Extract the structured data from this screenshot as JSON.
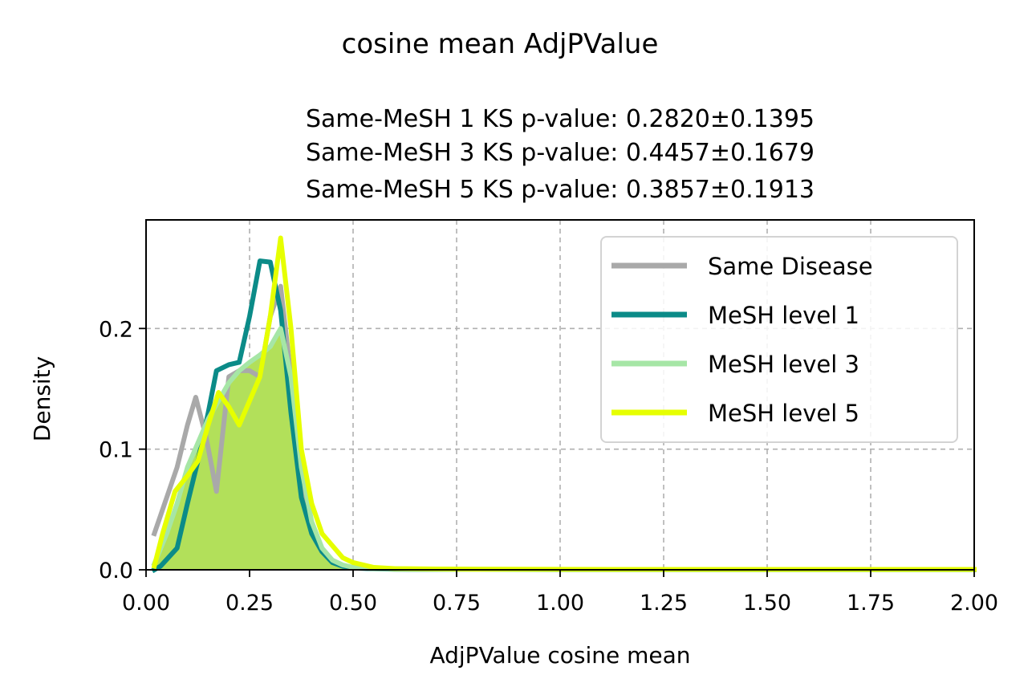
{
  "chart_data": {
    "type": "line",
    "suptitle": "cosine mean AdjPValue",
    "title_lines": [
      "Same-MeSH 1 KS p-value: 0.2820±0.1395",
      "Same-MeSH 3 KS p-value: 0.4457±0.1679",
      "Same-MeSH 5 KS p-value: 0.3857±0.1913"
    ],
    "xlabel": "AdjPValue cosine mean",
    "ylabel": "Density",
    "xlim": [
      0,
      2
    ],
    "ylim": [
      0,
      0.29
    ],
    "x_ticks": [
      "0.00",
      "0.25",
      "0.50",
      "0.75",
      "1.00",
      "1.25",
      "1.50",
      "1.75",
      "2.00"
    ],
    "y_ticks": [
      "0.0",
      "0.1",
      "0.2"
    ],
    "grid": true,
    "legend_position": "top-right",
    "filled_area_color": "#b2e05a",
    "series": [
      {
        "name": "Same Disease",
        "color": "#a9a9a9",
        "x": [
          0.02,
          0.045,
          0.075,
          0.1,
          0.12,
          0.145,
          0.17,
          0.2,
          0.225,
          0.25,
          0.275,
          0.3,
          0.325,
          0.35,
          0.375,
          0.4,
          0.425,
          0.45,
          0.475,
          0.5,
          0.55,
          0.6,
          0.7,
          0.8,
          1.0,
          1.2,
          1.5,
          1.75,
          2.0
        ],
        "y": [
          0.03,
          0.055,
          0.085,
          0.12,
          0.143,
          0.11,
          0.065,
          0.16,
          0.165,
          0.165,
          0.16,
          0.21,
          0.235,
          0.16,
          0.07,
          0.03,
          0.015,
          0.006,
          0.003,
          0.002,
          0.001,
          0.0008,
          0.0005,
          0.0004,
          0.0003,
          0.0003,
          0.0002,
          0.0002,
          0.0002
        ]
      },
      {
        "name": "MeSH level 1",
        "color": "#0b8b88",
        "x": [
          0.02,
          0.035,
          0.075,
          0.1,
          0.125,
          0.15,
          0.17,
          0.2,
          0.225,
          0.25,
          0.275,
          0.3,
          0.325,
          0.35,
          0.375,
          0.4,
          0.425,
          0.45,
          0.475,
          0.5,
          0.55,
          0.6,
          0.7,
          0.8,
          1.0,
          1.2,
          1.5,
          1.75,
          2.0
        ],
        "y": [
          0.0,
          0.003,
          0.018,
          0.055,
          0.09,
          0.13,
          0.165,
          0.17,
          0.172,
          0.21,
          0.256,
          0.255,
          0.215,
          0.13,
          0.06,
          0.03,
          0.015,
          0.006,
          0.003,
          0.0015,
          0.0008,
          0.0005,
          0.0003,
          0.0003,
          0.0002,
          0.0002,
          0.0002,
          0.0002,
          0.0002
        ]
      },
      {
        "name": "MeSH level 3",
        "color": "#a6e6a6",
        "x": [
          0.02,
          0.05,
          0.075,
          0.1,
          0.125,
          0.15,
          0.175,
          0.2,
          0.225,
          0.25,
          0.275,
          0.3,
          0.325,
          0.35,
          0.375,
          0.4,
          0.425,
          0.45,
          0.475,
          0.5,
          0.55,
          0.6,
          0.7,
          0.8,
          1.0,
          1.2,
          1.5,
          1.75,
          2.0
        ],
        "y": [
          0.005,
          0.03,
          0.055,
          0.085,
          0.105,
          0.125,
          0.14,
          0.155,
          0.165,
          0.172,
          0.178,
          0.185,
          0.2,
          0.16,
          0.085,
          0.04,
          0.018,
          0.008,
          0.004,
          0.002,
          0.001,
          0.0008,
          0.0005,
          0.0004,
          0.0003,
          0.0003,
          0.0002,
          0.0002,
          0.0002
        ]
      },
      {
        "name": "MeSH level 5",
        "color": "#e6ff00",
        "x": [
          0.02,
          0.04,
          0.07,
          0.1,
          0.125,
          0.15,
          0.175,
          0.2,
          0.225,
          0.25,
          0.275,
          0.3,
          0.325,
          0.35,
          0.375,
          0.4,
          0.425,
          0.45,
          0.475,
          0.5,
          0.55,
          0.6,
          0.7,
          0.8,
          1.0,
          1.2,
          1.5,
          1.75,
          2.0
        ],
        "y": [
          0.003,
          0.03,
          0.065,
          0.078,
          0.09,
          0.12,
          0.147,
          0.135,
          0.12,
          0.14,
          0.16,
          0.21,
          0.275,
          0.2,
          0.1,
          0.055,
          0.03,
          0.02,
          0.01,
          0.006,
          0.002,
          0.001,
          0.0007,
          0.0005,
          0.0004,
          0.0003,
          0.0003,
          0.0003,
          0.0003
        ]
      }
    ]
  }
}
